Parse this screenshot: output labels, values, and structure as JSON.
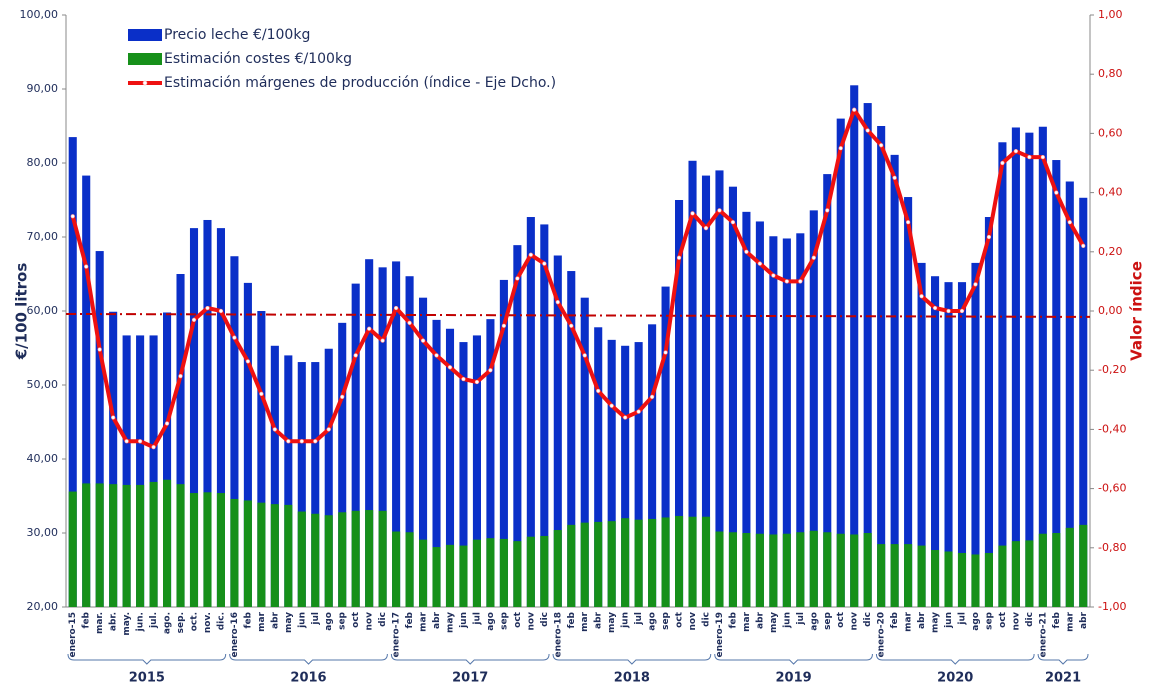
{
  "chart_data": {
    "type": "bar",
    "y_axis_label": "€/100 litros",
    "y2_axis_label": "Valor índice",
    "categories": [
      "enero-15",
      "feb",
      "mar.",
      "abr.",
      "may.",
      "jun.",
      "jul.",
      "ago.",
      "sep.",
      "oct.",
      "nov.",
      "dic.",
      "enero-16",
      "feb",
      "mar",
      "abr",
      "may",
      "jun",
      "jul",
      "ago",
      "sep",
      "oct",
      "nov",
      "dic",
      "enero-17",
      "feb",
      "mar",
      "abr",
      "may",
      "jun",
      "jul",
      "ago",
      "sep",
      "oct",
      "nov",
      "dic",
      "enero-18",
      "feb",
      "mar",
      "abr",
      "may",
      "jun",
      "jul",
      "ago",
      "sep",
      "oct",
      "nov",
      "dic",
      "enero-19",
      "feb",
      "mar",
      "abr",
      "may",
      "jun",
      "jul",
      "ago",
      "sep",
      "oct",
      "nov",
      "dic",
      "enero-20",
      "feb",
      "mar",
      "abr",
      "may",
      "jun",
      "jul",
      "ago",
      "sep",
      "oct",
      "nov",
      "dic",
      "enero-21",
      "feb",
      "mar",
      "abr"
    ],
    "year_groups": [
      "2015",
      "2016",
      "2017",
      "2018",
      "2019",
      "2020",
      "2021"
    ],
    "series": [
      {
        "name": "Precio leche €/100kg",
        "type": "bar",
        "color": "#0a2fc8",
        "values": [
          83.5,
          78.3,
          68.1,
          59.9,
          56.7,
          56.7,
          56.7,
          59.8,
          65.0,
          71.2,
          72.3,
          71.2,
          67.4,
          63.8,
          60.0,
          55.3,
          54.0,
          53.1,
          53.1,
          54.9,
          58.4,
          63.7,
          67.0,
          65.9,
          66.7,
          64.7,
          61.8,
          58.8,
          57.6,
          55.8,
          56.7,
          58.9,
          64.2,
          68.9,
          72.7,
          71.7,
          67.5,
          65.4,
          61.8,
          57.8,
          56.1,
          55.3,
          55.8,
          58.2,
          63.3,
          75.0,
          80.3,
          78.3,
          79.0,
          76.8,
          73.4,
          72.1,
          70.1,
          69.8,
          70.5,
          73.6,
          78.5,
          86.0,
          90.5,
          88.1,
          85.0,
          81.1,
          75.4,
          66.5,
          64.7,
          63.9,
          63.9,
          66.5,
          72.7,
          82.8,
          84.8,
          84.1,
          84.9,
          80.4,
          77.5,
          75.3
        ]
      },
      {
        "name": "Estimación costes €/100kg",
        "type": "bar",
        "color": "#16901a",
        "values": [
          35.6,
          36.7,
          36.7,
          36.6,
          36.5,
          36.5,
          36.9,
          37.2,
          36.6,
          35.4,
          35.5,
          35.4,
          34.6,
          34.4,
          34.1,
          33.9,
          33.8,
          32.9,
          32.6,
          32.4,
          32.8,
          33.0,
          33.1,
          33.0,
          30.2,
          30.1,
          29.1,
          28.1,
          28.4,
          28.3,
          29.1,
          29.3,
          29.2,
          28.9,
          29.5,
          29.6,
          30.4,
          31.1,
          31.4,
          31.5,
          31.6,
          32.0,
          31.8,
          31.9,
          32.1,
          32.3,
          32.2,
          32.2,
          30.2,
          30.1,
          30.0,
          29.9,
          29.8,
          29.9,
          30.1,
          30.3,
          30.1,
          29.9,
          29.8,
          30.0,
          28.5,
          28.5,
          28.5,
          28.3,
          27.7,
          27.5,
          27.3,
          27.1,
          27.3,
          28.3,
          28.9,
          29.0,
          29.9,
          30.0,
          30.7,
          31.1
        ]
      },
      {
        "name": "Estimación márgenes de producción (índice - Eje Dcho.)",
        "type": "line",
        "axis": "y2",
        "color": "#ee1111",
        "values": [
          0.32,
          0.15,
          -0.13,
          -0.36,
          -0.44,
          -0.44,
          -0.46,
          -0.38,
          -0.22,
          -0.03,
          0.01,
          0.0,
          -0.09,
          -0.17,
          -0.28,
          -0.4,
          -0.44,
          -0.44,
          -0.44,
          -0.4,
          -0.29,
          -0.15,
          -0.06,
          -0.1,
          0.01,
          -0.04,
          -0.1,
          -0.15,
          -0.19,
          -0.23,
          -0.24,
          -0.2,
          -0.05,
          0.11,
          0.19,
          0.16,
          0.03,
          -0.05,
          -0.15,
          -0.27,
          -0.32,
          -0.36,
          -0.34,
          -0.29,
          -0.14,
          0.18,
          0.33,
          0.28,
          0.34,
          0.3,
          0.2,
          0.16,
          0.12,
          0.1,
          0.1,
          0.18,
          0.34,
          0.55,
          0.68,
          0.61,
          0.56,
          0.45,
          0.3,
          0.05,
          0.01,
          0.0,
          0.0,
          0.09,
          0.25,
          0.5,
          0.54,
          0.52,
          0.52,
          0.4,
          0.3,
          0.22
        ]
      }
    ],
    "y2_reference": {
      "values": [
        -0.01,
        -0.02
      ],
      "color": "#c00000"
    },
    "ylim": [
      20,
      100
    ],
    "yticks": [
      {
        "value": 20,
        "label": "20,00"
      },
      {
        "value": 30,
        "label": "30,00"
      },
      {
        "value": 40,
        "label": "40,00"
      },
      {
        "value": 50,
        "label": "50,00"
      },
      {
        "value": 60,
        "label": "60,00"
      },
      {
        "value": 70,
        "label": "70,00"
      },
      {
        "value": 80,
        "label": "80,00"
      },
      {
        "value": 90,
        "label": "90,00"
      },
      {
        "value": 100,
        "label": "100,00"
      }
    ],
    "y2lim": [
      -1,
      1
    ],
    "y2ticks": [
      {
        "value": -1,
        "label": "-1,00"
      },
      {
        "value": -0.8,
        "label": "-0,80"
      },
      {
        "value": -0.6,
        "label": "-0,60"
      },
      {
        "value": -0.4,
        "label": "-0,40"
      },
      {
        "value": -0.2,
        "label": "-0,20"
      },
      {
        "value": 0,
        "label": "0,00"
      },
      {
        "value": 0.2,
        "label": "0,20"
      },
      {
        "value": 0.4,
        "label": "0,40"
      },
      {
        "value": 0.6,
        "label": "0,60"
      },
      {
        "value": 0.8,
        "label": "0,80"
      },
      {
        "value": 1,
        "label": "1,00"
      }
    ],
    "legend": "upper left",
    "grid": false
  }
}
